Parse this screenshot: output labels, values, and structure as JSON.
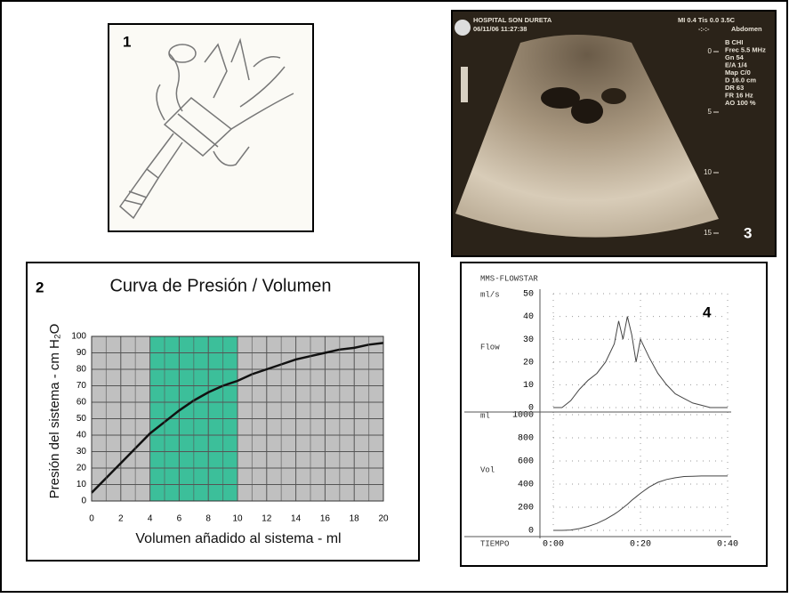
{
  "panel_labels": [
    "1",
    "2",
    "3",
    "4"
  ],
  "ultrasound": {
    "hospital": "HOSPITAL SON DURETA",
    "datetime": "06/11/06 11:27:38",
    "mi": "MI 0.4  Tis 0.0 3.5C",
    "clock": "-:-:-",
    "preset": "Abdomen",
    "settings": [
      "B  CHI",
      "Frec 5.5 MHz",
      "Gn  54",
      "E/A  1/4",
      "Map  C/0",
      "D  16.0 cm",
      "DR  63",
      "FR  16 Hz",
      "AO  100 %"
    ],
    "depth_labels": [
      "0",
      "5",
      "10",
      "15"
    ]
  },
  "chart_data": [
    {
      "type": "line",
      "title": "Curva de Presión / Volumen",
      "x_label": "Volumen añadido al sistema - ml",
      "y_label": "Presión del sistema - cm H₂O",
      "x": [
        0,
        1,
        2,
        3,
        4,
        5,
        6,
        7,
        8,
        9,
        10,
        11,
        12,
        13,
        14,
        15,
        16,
        17,
        18,
        19,
        20
      ],
      "values": [
        5,
        14,
        23,
        32,
        41,
        48,
        55,
        61,
        66,
        70,
        73,
        77,
        80,
        83,
        86,
        88,
        90,
        92,
        93,
        95,
        96
      ],
      "color": "#111111",
      "background": "#c0c0c0",
      "grid": true,
      "highlight_xrange": [
        4,
        10
      ],
      "highlight_color": "#3cbf9a",
      "xlim": [
        0,
        20
      ],
      "ylim": [
        0,
        100
      ],
      "xticks": [
        0,
        2,
        4,
        6,
        8,
        10,
        12,
        14,
        16,
        18,
        20
      ],
      "yticks": [
        0,
        10,
        20,
        30,
        40,
        50,
        60,
        70,
        80,
        90,
        100
      ]
    },
    {
      "type": "line",
      "title": "MMS-FLOWSTAR",
      "y_label": "ml/s",
      "series_label": "Flow",
      "x": [
        0,
        2,
        4,
        6,
        8,
        10,
        12,
        14,
        15,
        16,
        17,
        18,
        19,
        20,
        22,
        24,
        26,
        28,
        30,
        32,
        34,
        36,
        38,
        40
      ],
      "values": [
        0,
        0,
        3,
        8,
        12,
        15,
        20,
        28,
        38,
        30,
        40,
        32,
        20,
        30,
        22,
        15,
        10,
        6,
        4,
        2,
        1,
        0,
        0,
        0
      ],
      "color": "#444444",
      "grid": true,
      "xlim": [
        0,
        40
      ],
      "ylim": [
        0,
        50
      ],
      "yticks": [
        0,
        10,
        20,
        30,
        40,
        50
      ]
    },
    {
      "type": "line",
      "y_label": "ml",
      "series_label": "Vol",
      "x_label": "TIEMPO",
      "x": [
        0,
        2,
        4,
        6,
        8,
        10,
        12,
        14,
        15,
        16,
        17,
        18,
        19,
        20,
        22,
        24,
        26,
        28,
        30,
        32,
        34,
        36,
        38,
        40
      ],
      "values": [
        0,
        0,
        3,
        15,
        35,
        60,
        95,
        140,
        165,
        195,
        225,
        260,
        290,
        320,
        375,
        415,
        440,
        455,
        465,
        468,
        470,
        470,
        470,
        470
      ],
      "color": "#444444",
      "grid": true,
      "xlim": [
        0,
        40
      ],
      "ylim": [
        0,
        1000
      ],
      "xticks": [
        {
          "value": 0,
          "label": "0:00"
        },
        {
          "value": 20,
          "label": "0:20"
        },
        {
          "value": 40,
          "label": "0:40"
        }
      ],
      "yticks": [
        0,
        200,
        400,
        600,
        800,
        1000
      ]
    }
  ]
}
